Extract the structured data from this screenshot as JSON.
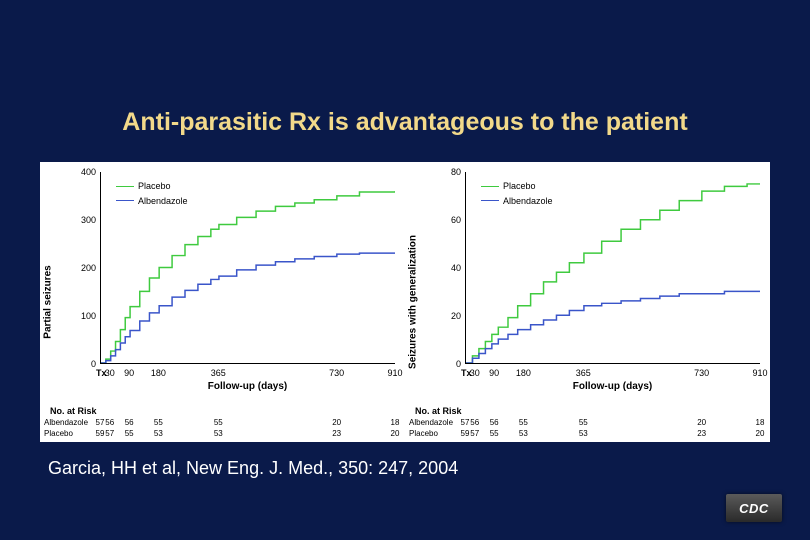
{
  "slide": {
    "title": "Anti-parasitic Rx is advantageous to the patient",
    "citation": "Garcia, HH et al, New Eng. J. Med., 350: 247, 2004",
    "logo_text": "CDC",
    "background_color": "#0a1a4a",
    "title_color": "#f2d98a",
    "citation_color": "#ffffff"
  },
  "charts": [
    {
      "type": "step-line",
      "ylabel": "Partial seizures",
      "xlabel": "Follow-up (days)",
      "ylim": [
        0,
        400
      ],
      "yticks": [
        0,
        100,
        200,
        300,
        400
      ],
      "xlim": [
        0,
        910
      ],
      "xticks": [
        30,
        90,
        180,
        365,
        730,
        910
      ],
      "tx_marker": 0,
      "background_color": "#ffffff",
      "axis_color": "#000000",
      "label_fontsize": 10,
      "tick_fontsize": 9,
      "legend": {
        "position": "upper-left",
        "items": [
          {
            "label": "Placebo",
            "color": "#3fca3f"
          },
          {
            "label": "Albendazole",
            "color": "#3a55c9"
          }
        ]
      },
      "series": [
        {
          "name": "Placebo",
          "color": "#3fca3f",
          "line_width": 1.5,
          "points": [
            [
              0,
              0
            ],
            [
              15,
              8
            ],
            [
              30,
              25
            ],
            [
              45,
              45
            ],
            [
              60,
              70
            ],
            [
              75,
              95
            ],
            [
              90,
              118
            ],
            [
              120,
              150
            ],
            [
              150,
              178
            ],
            [
              180,
              200
            ],
            [
              220,
              225
            ],
            [
              260,
              248
            ],
            [
              300,
              265
            ],
            [
              340,
              280
            ],
            [
              365,
              290
            ],
            [
              420,
              305
            ],
            [
              480,
              318
            ],
            [
              540,
              328
            ],
            [
              600,
              335
            ],
            [
              660,
              342
            ],
            [
              730,
              350
            ],
            [
              800,
              358
            ],
            [
              910,
              360
            ]
          ]
        },
        {
          "name": "Albendazole",
          "color": "#3a55c9",
          "line_width": 1.5,
          "points": [
            [
              0,
              0
            ],
            [
              15,
              5
            ],
            [
              30,
              15
            ],
            [
              45,
              28
            ],
            [
              60,
              42
            ],
            [
              75,
              55
            ],
            [
              90,
              68
            ],
            [
              120,
              88
            ],
            [
              150,
              105
            ],
            [
              180,
              120
            ],
            [
              220,
              138
            ],
            [
              260,
              152
            ],
            [
              300,
              165
            ],
            [
              340,
              175
            ],
            [
              365,
              182
            ],
            [
              420,
              195
            ],
            [
              480,
              205
            ],
            [
              540,
              212
            ],
            [
              600,
              218
            ],
            [
              660,
              223
            ],
            [
              730,
              228
            ],
            [
              800,
              230
            ],
            [
              910,
              231
            ]
          ]
        }
      ],
      "risk_table": {
        "title": "No. at Risk",
        "x_positions": [
          0,
          30,
          90,
          180,
          365,
          730,
          910
        ],
        "rows": [
          {
            "label": "Albendazole",
            "values": [
              57,
              56,
              56,
              55,
              55,
              20,
              18
            ]
          },
          {
            "label": "Placebo",
            "values": [
              59,
              57,
              55,
              53,
              53,
              23,
              20
            ]
          }
        ]
      }
    },
    {
      "type": "step-line",
      "ylabel": "Seizures with generalization",
      "xlabel": "Follow-up (days)",
      "ylim": [
        0,
        80
      ],
      "yticks": [
        0,
        20,
        40,
        60,
        80
      ],
      "xlim": [
        0,
        910
      ],
      "xticks": [
        30,
        90,
        180,
        365,
        730,
        910
      ],
      "tx_marker": 0,
      "background_color": "#ffffff",
      "axis_color": "#000000",
      "label_fontsize": 10,
      "tick_fontsize": 9,
      "legend": {
        "position": "upper-left",
        "items": [
          {
            "label": "Placebo",
            "color": "#3fca3f"
          },
          {
            "label": "Albendazole",
            "color": "#3a55c9"
          }
        ]
      },
      "series": [
        {
          "name": "Placebo",
          "color": "#3fca3f",
          "line_width": 1.5,
          "points": [
            [
              0,
              0
            ],
            [
              20,
              3
            ],
            [
              40,
              6
            ],
            [
              60,
              9
            ],
            [
              80,
              12
            ],
            [
              100,
              15
            ],
            [
              130,
              19
            ],
            [
              160,
              24
            ],
            [
              200,
              29
            ],
            [
              240,
              34
            ],
            [
              280,
              38
            ],
            [
              320,
              42
            ],
            [
              365,
              46
            ],
            [
              420,
              51
            ],
            [
              480,
              56
            ],
            [
              540,
              60
            ],
            [
              600,
              64
            ],
            [
              660,
              68
            ],
            [
              730,
              72
            ],
            [
              800,
              74
            ],
            [
              870,
              75
            ],
            [
              910,
              75
            ]
          ]
        },
        {
          "name": "Albendazole",
          "color": "#3a55c9",
          "line_width": 1.5,
          "points": [
            [
              0,
              0
            ],
            [
              20,
              2
            ],
            [
              40,
              4
            ],
            [
              60,
              6
            ],
            [
              80,
              8
            ],
            [
              100,
              10
            ],
            [
              130,
              12
            ],
            [
              160,
              14
            ],
            [
              200,
              16
            ],
            [
              240,
              18
            ],
            [
              280,
              20
            ],
            [
              320,
              22
            ],
            [
              365,
              24
            ],
            [
              420,
              25
            ],
            [
              480,
              26
            ],
            [
              540,
              27
            ],
            [
              600,
              28
            ],
            [
              660,
              29
            ],
            [
              730,
              29
            ],
            [
              800,
              30
            ],
            [
              870,
              30
            ],
            [
              910,
              30
            ]
          ]
        }
      ],
      "risk_table": {
        "title": "No. at Risk",
        "x_positions": [
          0,
          30,
          90,
          180,
          365,
          730,
          910
        ],
        "rows": [
          {
            "label": "Albendazole",
            "values": [
              57,
              56,
              56,
              55,
              55,
              20,
              18
            ]
          },
          {
            "label": "Placebo",
            "values": [
              59,
              57,
              55,
              53,
              53,
              23,
              20
            ]
          }
        ]
      }
    }
  ]
}
